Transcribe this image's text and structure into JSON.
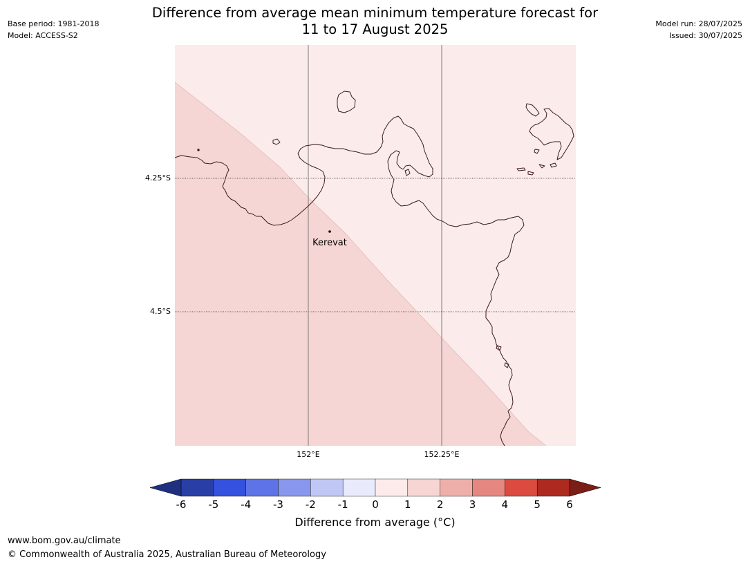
{
  "header": {
    "base_period": "Base period: 1981-2018",
    "model": "Model: ACCESS-S2",
    "title_line1": "Difference from average mean minimum temperature forecast for",
    "title_line2": "11 to 17 August 2025",
    "model_run": "Model run: 28/07/2025",
    "issued": "Issued: 30/07/2025"
  },
  "map": {
    "lat_labels": [
      "4.25°S",
      "4.5°S"
    ],
    "lon_labels": [
      "152°E",
      "152.25°E"
    ],
    "place_name": "Kerevat",
    "zone_colors": {
      "low": "#f5d6d4",
      "high": "#fbebea"
    },
    "coastline_color": "#3a1a1a"
  },
  "colorbar": {
    "ticks": [
      "-6",
      "-5",
      "-4",
      "-3",
      "-2",
      "-1",
      "0",
      "1",
      "2",
      "3",
      "4",
      "5",
      "6"
    ],
    "colors": [
      "#2a3fa6",
      "#3551e0",
      "#5e73e6",
      "#8897ed",
      "#c1c7f5",
      "#e9ebfc",
      "#fcebea",
      "#f6d5d3",
      "#eeafaa",
      "#e58681",
      "#dc4b40",
      "#ae2a21"
    ],
    "under_color": "#1f3080",
    "over_color": "#7a1e17",
    "label": "Difference from average (°C)"
  },
  "footer": {
    "url": "www.bom.gov.au/climate",
    "copyright": "© Commonwealth of Australia 2025, Australian Bureau of Meteorology"
  }
}
